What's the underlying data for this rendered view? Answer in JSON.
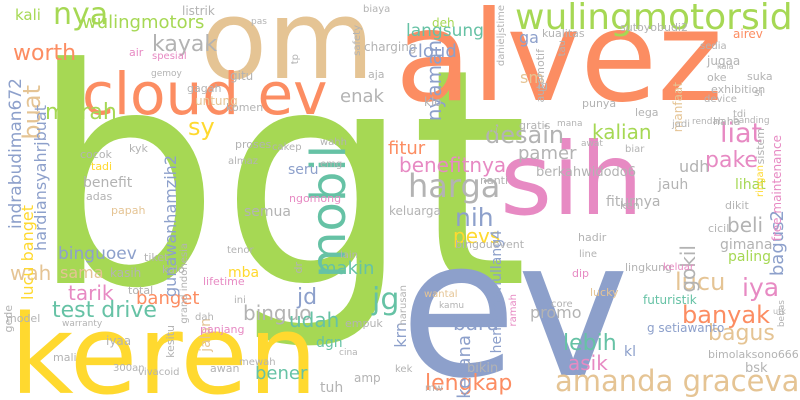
{
  "words": [
    {
      "text": "bgt",
      "color": "#a6d854"
    },
    {
      "text": "ev",
      "color": "#8da0cb"
    },
    {
      "text": "alvez",
      "color": "#fc8d62"
    },
    {
      "text": "keren",
      "color": "#ffd92f"
    },
    {
      "text": "sih",
      "color": "#e78ac3"
    },
    {
      "text": "om",
      "color": "#e5c494"
    },
    {
      "text": "cloud ev",
      "color": "#fc8d62"
    },
    {
      "text": "wulingmotorsid",
      "color": "#a6d854"
    },
    {
      "text": "mobil",
      "color": "#66c2a5"
    },
    {
      "text": "harga",
      "color": "#b3b3b3"
    },
    {
      "text": "amanda graceva2",
      "color": "#e5c494"
    },
    {
      "text": "lengkap",
      "color": "#fc8d62"
    },
    {
      "text": "nya",
      "color": "#a6d854"
    },
    {
      "text": "worth",
      "color": "#fc8d62"
    },
    {
      "text": "murah",
      "color": "#a6d854"
    },
    {
      "text": "kayak",
      "color": "#b3b3b3"
    },
    {
      "text": "buat",
      "color": "#e5c494"
    },
    {
      "text": "sy",
      "color": "#ffd92f"
    },
    {
      "text": "liat",
      "color": "#e78ac3"
    },
    {
      "text": "desain",
      "color": "#b3b3b3"
    },
    {
      "text": "kalian",
      "color": "#a6d854"
    },
    {
      "text": "pake",
      "color": "#e78ac3"
    },
    {
      "text": "nih",
      "color": "#8da0cb"
    },
    {
      "text": "jg",
      "color": "#66c2a5"
    },
    {
      "text": "lucu",
      "color": "#e5c494"
    },
    {
      "text": "banyak",
      "color": "#fc8d62"
    },
    {
      "text": "iya",
      "color": "#e78ac3"
    },
    {
      "text": "lebih",
      "color": "#66c2a5"
    },
    {
      "text": "bagus",
      "color": "#e5c494"
    },
    {
      "text": "asik",
      "color": "#e78ac3"
    },
    {
      "text": "test drive",
      "color": "#66c2a5"
    },
    {
      "text": "tarik",
      "color": "#e78ac3"
    },
    {
      "text": "banget",
      "color": "#fc8d62"
    },
    {
      "text": "binguo",
      "color": "#b3b3b3"
    },
    {
      "text": "wah",
      "color": "#e5c494"
    },
    {
      "text": "sama",
      "color": "#e5c494"
    },
    {
      "text": "udah",
      "color": "#66c2a5"
    },
    {
      "text": "jd",
      "color": "#8da0cb"
    },
    {
      "text": "bener",
      "color": "#66c2a5"
    },
    {
      "text": "baru",
      "color": "#8da0cb"
    },
    {
      "text": "promo",
      "color": "#b3b3b3"
    },
    {
      "text": "kesana",
      "color": "#8da0cb"
    },
    {
      "text": "krn",
      "color": "#8da0cb"
    },
    {
      "text": "gokil",
      "color": "#b3b3b3"
    },
    {
      "text": "makin",
      "color": "#66c2a5"
    },
    {
      "text": "pevs",
      "color": "#ffd92f"
    },
    {
      "text": "fitur",
      "color": "#fc8d62"
    },
    {
      "text": "benefitnya",
      "color": "#e78ac3"
    },
    {
      "text": "pamer",
      "color": "#b3b3b3"
    },
    {
      "text": "udh",
      "color": "#b3b3b3"
    },
    {
      "text": "beli",
      "color": "#b3b3b3"
    },
    {
      "text": "bagus2",
      "color": "#8da0cb"
    },
    {
      "text": "enak",
      "color": "#b3b3b3"
    },
    {
      "text": "nyaman",
      "color": "#8da0cb"
    },
    {
      "text": "langsung",
      "color": "#66c2a5"
    },
    {
      "text": "cloud",
      "color": "#8da0cb"
    },
    {
      "text": "ga",
      "color": "#8da0cb"
    },
    {
      "text": "sm",
      "color": "#e5c494"
    },
    {
      "text": "kali",
      "color": "#a6d854"
    },
    {
      "text": "wulingmotors",
      "color": "#a6d854"
    },
    {
      "text": "indrabudiman672",
      "color": "#8da0cb"
    },
    {
      "text": "lucu banget",
      "color": "#ffd92f"
    },
    {
      "text": "hardiansyahrjbuat",
      "color": "#8da0cb"
    },
    {
      "text": "binguoev",
      "color": "#8da0cb"
    },
    {
      "text": "gunawanhamzih2",
      "color": "#8da0cb"
    },
    {
      "text": "benefit",
      "color": "#b3b3b3"
    },
    {
      "text": "semua",
      "color": "#b3b3b3"
    },
    {
      "text": "mba",
      "color": "#ffd92f"
    },
    {
      "text": "kasih",
      "color": "#b3b3b3"
    },
    {
      "text": "henrymanullang4",
      "color": "#8da0cb"
    },
    {
      "text": "fiturnya",
      "color": "#b3b3b3"
    },
    {
      "text": "jauh",
      "color": "#b3b3b3"
    },
    {
      "text": "berkahwidodo6",
      "color": "#b3b3b3"
    },
    {
      "text": "seru",
      "color": "#8da0cb"
    },
    {
      "text": "gimana",
      "color": "#b3b3b3"
    },
    {
      "text": "lihat",
      "color": "#a6d854"
    },
    {
      "text": "paling",
      "color": "#a6d854"
    },
    {
      "text": "dgn",
      "color": "#66c2a5"
    },
    {
      "text": "tuh",
      "color": "#b3b3b3"
    },
    {
      "text": "jalan",
      "color": "#e5c494"
    },
    {
      "text": "bikin",
      "color": "#b3b3b3"
    },
    {
      "text": "g setiawanto",
      "color": "#8da0cb"
    },
    {
      "text": "futuristik",
      "color": "#66c2a5"
    },
    {
      "text": "bsk",
      "color": "#b3b3b3"
    },
    {
      "text": "kl",
      "color": "#8da0cb"
    },
    {
      "text": "bimolaksono666",
      "color": "#b3b3b3"
    },
    {
      "text": "gitu",
      "color": "#b3b3b3"
    },
    {
      "text": "untung",
      "color": "#e5c494"
    },
    {
      "text": "komen",
      "color": "#b3b3b3"
    },
    {
      "text": "cocok",
      "color": "#b3b3b3"
    },
    {
      "text": "tadi",
      "color": "#ffd92f"
    },
    {
      "text": "kyk",
      "color": "#b3b3b3"
    },
    {
      "text": "adas",
      "color": "#b3b3b3"
    },
    {
      "text": "papah",
      "color": "#e5c494"
    },
    {
      "text": "tiket",
      "color": "#b3b3b3"
    },
    {
      "text": "total",
      "color": "#b3b3b3"
    },
    {
      "text": "kalo",
      "color": "#b3b3b3"
    },
    {
      "text": "air",
      "color": "#e78ac3"
    },
    {
      "text": "spesial",
      "color": "#e78ac3"
    },
    {
      "text": "listrik",
      "color": "#b3b3b3"
    },
    {
      "text": "deh",
      "color": "#a6d854"
    },
    {
      "text": "klo",
      "color": "#b3b3b3"
    },
    {
      "text": "aja",
      "color": "#b3b3b3"
    },
    {
      "text": "charging",
      "color": "#b3b3b3"
    },
    {
      "text": "kualitas",
      "color": "#b3b3b3"
    },
    {
      "text": "sutoyobudi2",
      "color": "#b3b3b3"
    },
    {
      "text": "airev",
      "color": "#fc8d62"
    },
    {
      "text": "sedia",
      "color": "#b3b3b3"
    },
    {
      "text": "jugaa",
      "color": "#b3b3b3"
    },
    {
      "text": "oke",
      "color": "#b3b3b3"
    },
    {
      "text": "exhibition",
      "color": "#b3b3b3"
    },
    {
      "text": "device",
      "color": "#b3b3b3"
    },
    {
      "text": "manfaat",
      "color": "#e5c494"
    },
    {
      "text": "suka",
      "color": "#b3b3b3"
    },
    {
      "text": "si",
      "color": "#b3b3b3"
    },
    {
      "text": "tdi",
      "color": "#b3b3b3"
    },
    {
      "text": "free maintenance",
      "color": "#e78ac3"
    },
    {
      "text": "sistem",
      "color": "#b3b3b3"
    },
    {
      "text": "ringan",
      "color": "#ffd92f"
    },
    {
      "text": "haha",
      "color": "#b3b3b3"
    },
    {
      "text": "banding",
      "color": "#b3b3b3"
    },
    {
      "text": "lega",
      "color": "#b3b3b3"
    },
    {
      "text": "jadi",
      "color": "#b3b3b3"
    },
    {
      "text": "punya",
      "color": "#b3b3b3"
    },
    {
      "text": "wuihh",
      "color": "#a6d854"
    },
    {
      "text": "gratis",
      "color": "#b3b3b3"
    },
    {
      "text": "mana",
      "color": "#b3b3b3"
    },
    {
      "text": "nanti",
      "color": "#b3b3b3"
    },
    {
      "text": "keluarga",
      "color": "#b3b3b3"
    },
    {
      "text": "ken",
      "color": "#b3b3b3"
    },
    {
      "text": "dikit",
      "color": "#b3b3b3"
    },
    {
      "text": "cicil",
      "color": "#b3b3b3"
    },
    {
      "text": "hadir",
      "color": "#b3b3b3"
    },
    {
      "text": "line",
      "color": "#b3b3b3"
    },
    {
      "text": "lingkung",
      "color": "#b3b3b3"
    },
    {
      "text": "keluar",
      "color": "#e78ac3"
    },
    {
      "text": "dip",
      "color": "#e78ac3"
    },
    {
      "text": "lucky",
      "color": "#e5c494"
    },
    {
      "text": "wantal",
      "color": "#e5c494"
    },
    {
      "text": "kamu",
      "color": "#b3b3b3"
    },
    {
      "text": "lain",
      "color": "#b3b3b3"
    },
    {
      "text": "bingouevent",
      "color": "#b3b3b3"
    },
    {
      "text": "harusan",
      "color": "#b3b3b3"
    },
    {
      "text": "ramah",
      "color": "#e78ac3"
    },
    {
      "text": "utk",
      "color": "#b3b3b3"
    },
    {
      "text": "kek",
      "color": "#b3b3b3"
    },
    {
      "text": "empuk",
      "color": "#b3b3b3"
    },
    {
      "text": "awan",
      "color": "#b3b3b3"
    },
    {
      "text": "mewah",
      "color": "#b3b3b3"
    },
    {
      "text": "amp",
      "color": "#b3b3b3"
    },
    {
      "text": "iyaa",
      "color": "#b3b3b3"
    },
    {
      "text": "mali",
      "color": "#b3b3b3"
    },
    {
      "text": "300an",
      "color": "#b3b3b3"
    },
    {
      "text": "vivacoid",
      "color": "#b3b3b3"
    },
    {
      "text": "gede",
      "color": "#b3b3b3"
    },
    {
      "text": "model",
      "color": "#b3b3b3"
    },
    {
      "text": "warranty",
      "color": "#b3b3b3"
    },
    {
      "text": "lifetime",
      "color": "#e78ac3"
    },
    {
      "text": "ini",
      "color": "#b3b3b3"
    },
    {
      "text": "tenor",
      "color": "#b3b3b3"
    },
    {
      "text": "grand indonesia",
      "color": "#b3b3b3"
    },
    {
      "text": "almaz",
      "color": "#b3b3b3"
    },
    {
      "text": "proses",
      "color": "#b3b3b3"
    },
    {
      "text": "cakep",
      "color": "#b3b3b3"
    },
    {
      "text": "wahh",
      "color": "#b3b3b3"
    },
    {
      "text": "ngomong",
      "color": "#e78ac3"
    },
    {
      "text": "emg",
      "color": "#b3b3b3"
    },
    {
      "text": "awat",
      "color": "#b3b3b3"
    },
    {
      "text": "biar",
      "color": "#b3b3b3"
    },
    {
      "text": "rendah",
      "color": "#b3b3b3"
    },
    {
      "text": "automotif",
      "color": "#b3b3b3"
    },
    {
      "text": "danieljstime",
      "color": "#b3b3b3"
    },
    {
      "text": "kala",
      "color": "#b3b3b3"
    },
    {
      "text": "safety",
      "color": "#b3b3b3"
    },
    {
      "text": "pas",
      "color": "#b3b3b3"
    },
    {
      "text": "biaya",
      "color": "#b3b3b3"
    },
    {
      "text": "gemoy",
      "color": "#b3b3b3"
    },
    {
      "text": "gagah",
      "color": "#b3b3b3"
    },
    {
      "text": "tp",
      "color": "#b3b3b3"
    },
    {
      "text": "dr",
      "color": "#b3b3b3"
    },
    {
      "text": "dah",
      "color": "#b3b3b3"
    },
    {
      "text": "panjang",
      "color": "#e78ac3"
    },
    {
      "text": "kesitu",
      "color": "#b3b3b3"
    },
    {
      "text": "cina",
      "color": "#b3b3b3"
    },
    {
      "text": "mw",
      "color": "#b3b3b3"
    },
    {
      "text": "bebas",
      "color": "#b3b3b3"
    },
    {
      "text": "tau",
      "color": "#b3b3b3"
    },
    {
      "text": "ig",
      "color": "#b3b3b3"
    },
    {
      "text": "core",
      "color": "#b3b3b3"
    }
  ]
}
